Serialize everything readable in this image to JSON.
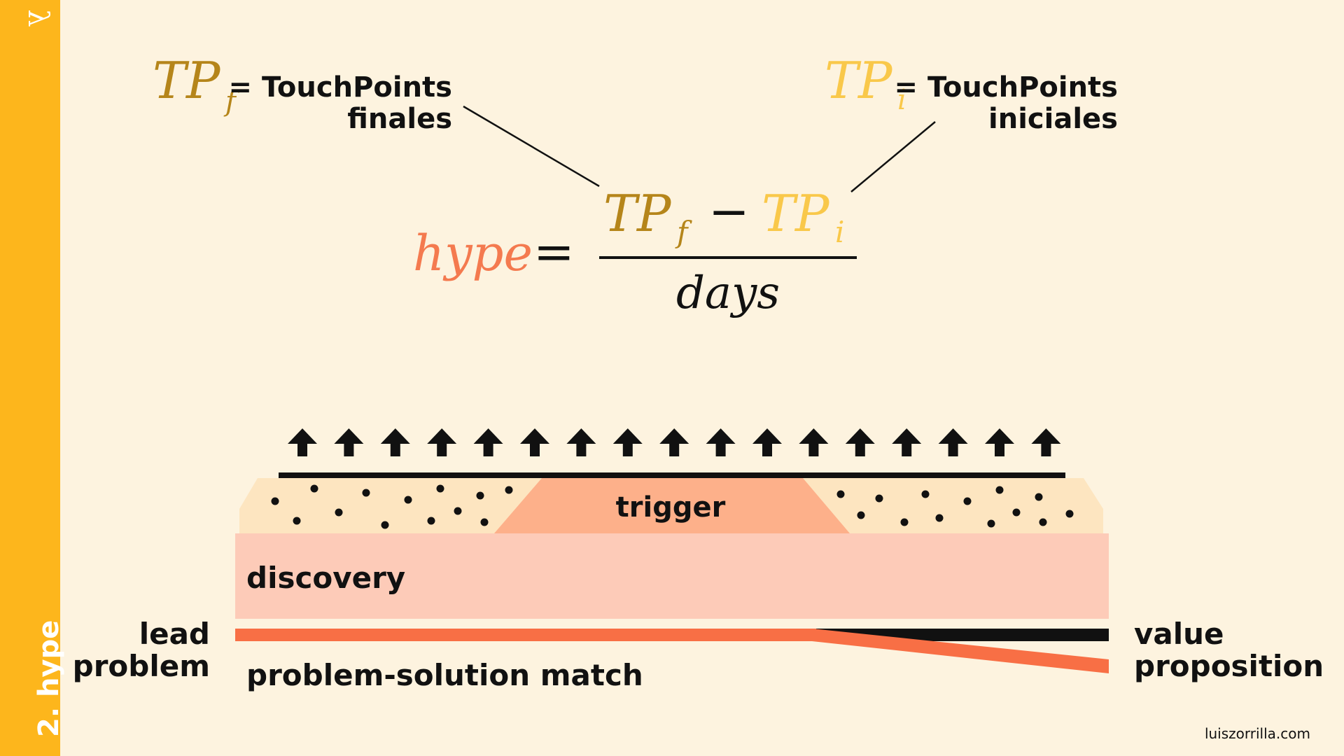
{
  "section": {
    "label": "2. hype",
    "icon": "lambda-icon"
  },
  "formula": {
    "lhs": "hype",
    "equals": "=",
    "numerator_left": "TP",
    "numerator_left_sub": "f",
    "minus": "−",
    "numerator_right": "TP",
    "numerator_right_sub": "i",
    "denominator": "days"
  },
  "legend_final": {
    "symbol": "TP",
    "sub": "f",
    "text_line1": "= TouchPoints",
    "text_line2": "finales"
  },
  "legend_initial": {
    "symbol": "TP",
    "sub": "i",
    "text_line1": "= TouchPoints",
    "text_line2": "iniciales"
  },
  "layers": {
    "trigger": "trigger",
    "discovery": "discovery",
    "bottom_label": "problem-solution match"
  },
  "side_labels": {
    "left_line1": "lead",
    "left_line2": "problem",
    "right_line1": "value",
    "right_line2": "proposition"
  },
  "footer": "luiszorrilla.com",
  "colors": {
    "sidebar": "#fdb61c",
    "background": "#fdf3df",
    "tp_final": "#b5851a",
    "tp_initial": "#f9c84a",
    "hype": "#f47a4f",
    "trigger_fill": "#fdb08a",
    "discovery_fill": "#fdcbb8",
    "sand_fill": "#fde5c0",
    "line_orange": "#f86f45"
  },
  "arrow_count": 17
}
